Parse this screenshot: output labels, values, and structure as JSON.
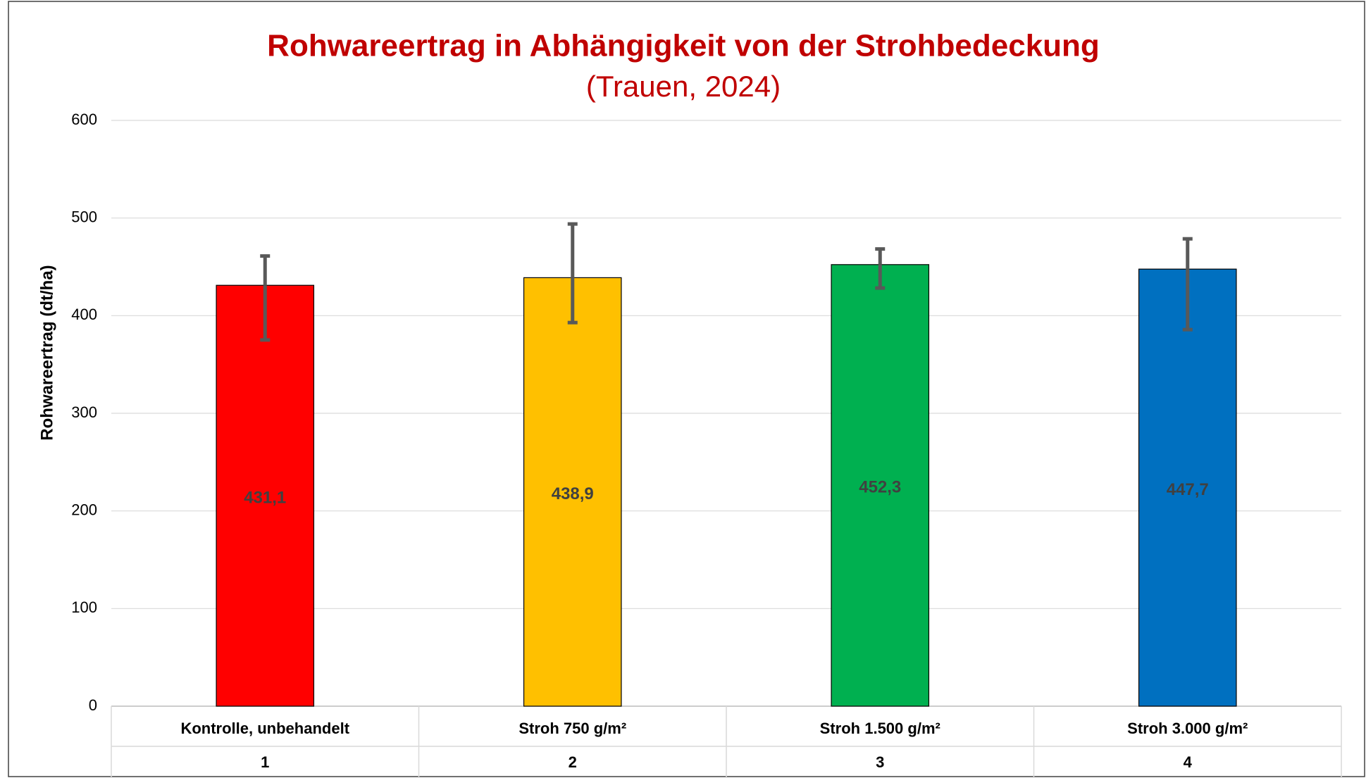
{
  "chart_data": {
    "type": "bar",
    "title": "Rohwareertrag in Abhängigkeit von der Strohbedeckung",
    "subtitle": "(Trauen, 2024)",
    "y_label": "Rohwareertrag (dt/ha)",
    "categories": [
      "Kontrolle, unbehandelt",
      "Stroh 750 g/m²",
      "Stroh 1.500 g/m²",
      "Stroh 3.000 g/m²"
    ],
    "group_labels": [
      "1",
      "2",
      "3",
      "4"
    ],
    "values": [
      431.1,
      438.9,
      452.3,
      447.7
    ],
    "value_labels": [
      "431,1",
      "438,9",
      "452,3",
      "447,7"
    ],
    "error_upper": [
      30,
      55,
      16,
      31
    ],
    "error_lower": [
      56,
      46,
      24,
      62
    ],
    "colors": [
      "#ff0000",
      "#ffc000",
      "#00b050",
      "#0070c0"
    ],
    "ylim": [
      0,
      600
    ],
    "yticks": [
      0,
      100,
      200,
      300,
      400,
      500,
      600
    ],
    "grid": true
  }
}
